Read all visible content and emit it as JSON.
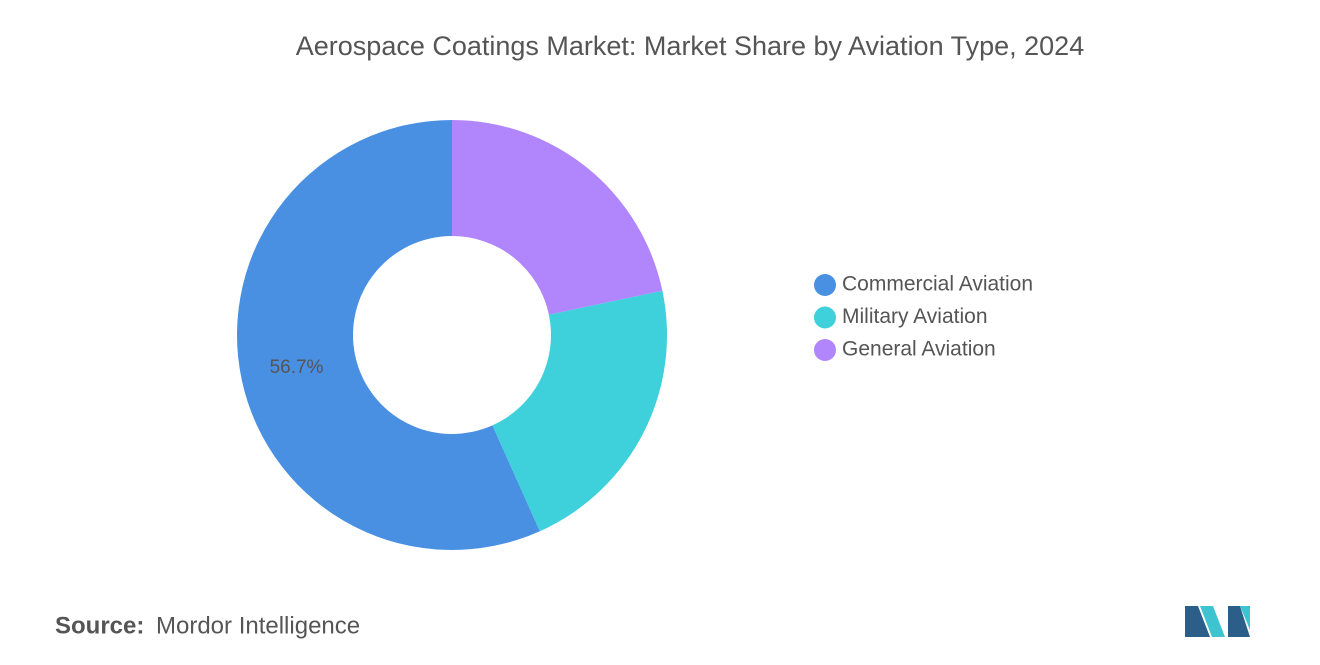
{
  "chart_data": {
    "type": "donut",
    "title": "Aerospace Coatings Market: Market Share by Aviation Type, 2024",
    "categories": [
      "Commercial Aviation",
      "Military Aviation",
      "General Aviation"
    ],
    "values": [
      56.7,
      21.6,
      21.7
    ],
    "value_labels": [
      "56.7%",
      null,
      null
    ],
    "colors": [
      "#4a90e2",
      "#3ed0db",
      "#b185fb"
    ],
    "source_label": "Source:",
    "source": "Mordor Intelligence"
  }
}
